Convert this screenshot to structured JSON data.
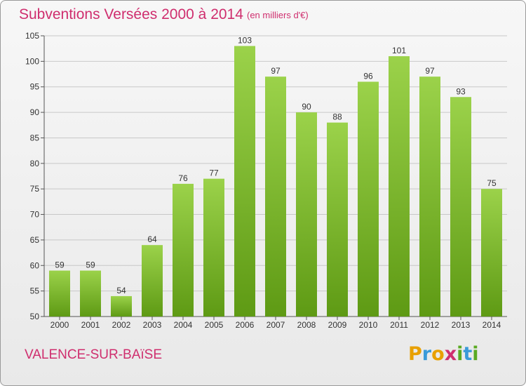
{
  "header": {
    "title": "Subventions Versées 2000 à 2014",
    "subtitle": "(en milliers d'€)"
  },
  "footer": {
    "commune": "VALENCE-SUR-BAïSE",
    "logo_letters": [
      "P",
      "r",
      "o",
      "x",
      "i",
      "t",
      "i"
    ],
    "logo_colors": [
      "#e8a000",
      "#3a9ad9",
      "#e8a000",
      "#cf2e6e",
      "#5aaa22",
      "#3a9ad9",
      "#5aaa22"
    ]
  },
  "colors": {
    "title": "#cf2e6e",
    "bar_light": "#9bd24a",
    "bar_dark": "#5e9a14",
    "grid": "#c8c8c8"
  },
  "chart_data": {
    "type": "bar",
    "title": "Subventions Versées 2000 à 2014",
    "subtitle": "(en milliers d'€)",
    "xlabel": "",
    "ylabel": "",
    "categories": [
      "2000",
      "2001",
      "2002",
      "2003",
      "2004",
      "2005",
      "2006",
      "2007",
      "2008",
      "2009",
      "2010",
      "2011",
      "2012",
      "2013",
      "2014"
    ],
    "values": [
      59,
      59,
      54,
      64,
      76,
      77,
      103,
      97,
      90,
      88,
      96,
      101,
      97,
      93,
      75
    ],
    "ylim": [
      50,
      105
    ],
    "yticks": [
      50,
      55,
      60,
      65,
      70,
      75,
      80,
      85,
      90,
      95,
      100,
      105
    ],
    "grid": true,
    "data_labels": true
  }
}
